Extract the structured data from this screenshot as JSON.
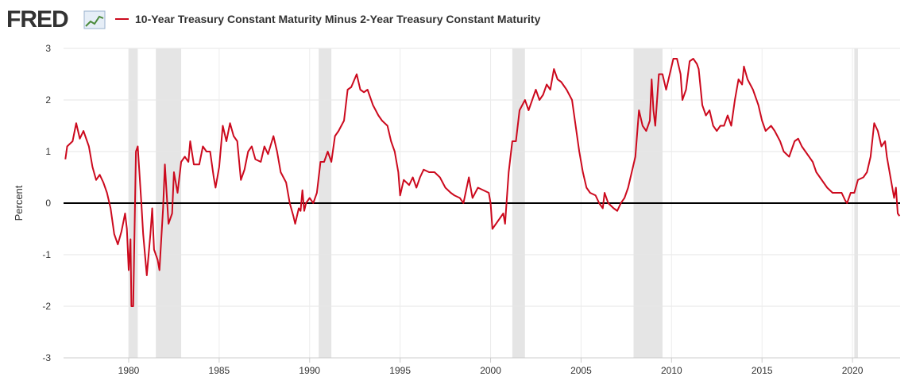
{
  "header": {
    "logo": "FRED"
  },
  "chart_data": {
    "type": "line",
    "y_label": "Percent",
    "xlim": [
      1976.4,
      2022.63
    ],
    "xticks": [
      1980,
      1985,
      1990,
      1995,
      2000,
      2005,
      2010,
      2015,
      2020
    ],
    "ylim": [
      -3,
      3
    ],
    "yticks": [
      -3,
      -2,
      -1,
      0,
      1,
      2,
      3
    ],
    "grid": true,
    "recessions": [
      [
        1980.0,
        1980.5
      ],
      [
        1981.5,
        1982.9
      ],
      [
        1990.5,
        1991.2
      ],
      [
        2001.2,
        2001.9
      ],
      [
        2007.9,
        2009.5
      ],
      [
        2020.1,
        2020.3
      ]
    ],
    "x": [
      1976.5,
      1976.6,
      1976.9,
      1977.1,
      1977.3,
      1977.5,
      1977.8,
      1978.0,
      1978.2,
      1978.4,
      1978.6,
      1978.8,
      1979.0,
      1979.2,
      1979.4,
      1979.6,
      1979.8,
      1979.9,
      1980.0,
      1980.1,
      1980.15,
      1980.25,
      1980.4,
      1980.5,
      1980.7,
      1980.8,
      1981.0,
      1981.2,
      1981.3,
      1981.4,
      1981.6,
      1981.7,
      1981.9,
      1982.0,
      1982.2,
      1982.4,
      1982.5,
      1982.7,
      1982.9,
      1983.1,
      1983.3,
      1983.4,
      1983.6,
      1983.9,
      1984.1,
      1984.3,
      1984.5,
      1984.7,
      1984.8,
      1985.0,
      1985.2,
      1985.4,
      1985.6,
      1985.8,
      1986.0,
      1986.2,
      1986.4,
      1986.6,
      1986.8,
      1987.0,
      1987.3,
      1987.5,
      1987.7,
      1988.0,
      1988.2,
      1988.4,
      1988.7,
      1988.9,
      1989.1,
      1989.2,
      1989.4,
      1989.5,
      1989.6,
      1989.7,
      1989.8,
      1990.0,
      1990.2,
      1990.4,
      1990.6,
      1990.8,
      1991.0,
      1991.2,
      1991.4,
      1991.6,
      1991.9,
      1992.1,
      1992.3,
      1992.6,
      1992.8,
      1993.0,
      1993.2,
      1993.5,
      1993.8,
      1994.0,
      1994.3,
      1994.5,
      1994.7,
      1994.9,
      1995.0,
      1995.2,
      1995.5,
      1995.7,
      1995.9,
      1996.1,
      1996.3,
      1996.6,
      1996.9,
      1997.2,
      1997.5,
      1997.8,
      1998.0,
      1998.3,
      1998.5,
      1998.8,
      1999.0,
      1999.3,
      1999.6,
      1999.9,
      2000.0,
      2000.1,
      2000.3,
      2000.5,
      2000.7,
      2000.8,
      2000.9,
      2001.0,
      2001.2,
      2001.4,
      2001.6,
      2001.9,
      2002.1,
      2002.3,
      2002.5,
      2002.7,
      2002.9,
      2003.1,
      2003.3,
      2003.5,
      2003.7,
      2003.9,
      2004.2,
      2004.5,
      2004.7,
      2004.9,
      2005.1,
      2005.3,
      2005.5,
      2005.8,
      2006.0,
      2006.2,
      2006.3,
      2006.5,
      2006.8,
      2007.0,
      2007.2,
      2007.4,
      2007.6,
      2007.8,
      2008.0,
      2008.2,
      2008.4,
      2008.6,
      2008.8,
      2008.9,
      2009.0,
      2009.1,
      2009.3,
      2009.5,
      2009.7,
      2009.9,
      2010.1,
      2010.3,
      2010.5,
      2010.6,
      2010.8,
      2011.0,
      2011.2,
      2011.4,
      2011.5,
      2011.7,
      2011.9,
      2012.1,
      2012.3,
      2012.5,
      2012.7,
      2012.9,
      2013.1,
      2013.3,
      2013.5,
      2013.7,
      2013.9,
      2014.0,
      2014.2,
      2014.5,
      2014.8,
      2015.0,
      2015.2,
      2015.5,
      2015.7,
      2016.0,
      2016.2,
      2016.5,
      2016.8,
      2017.0,
      2017.2,
      2017.5,
      2017.8,
      2018.0,
      2018.3,
      2018.6,
      2018.9,
      2019.1,
      2019.4,
      2019.6,
      2019.7,
      2019.9,
      2020.1,
      2020.3,
      2020.6,
      2020.8,
      2021.0,
      2021.2,
      2021.4,
      2021.6,
      2021.8,
      2021.9,
      2022.1,
      2022.3,
      2022.4,
      2022.5,
      2022.6
    ],
    "series": [
      {
        "name": "10-Year Treasury Constant Maturity Minus 2-Year Treasury Constant Maturity",
        "color": "#cc0a1e",
        "values": [
          0.85,
          1.1,
          1.2,
          1.55,
          1.25,
          1.4,
          1.1,
          0.7,
          0.45,
          0.55,
          0.4,
          0.2,
          -0.1,
          -0.6,
          -0.8,
          -0.55,
          -0.2,
          -0.5,
          -1.3,
          -0.7,
          -2.0,
          -2.0,
          1.0,
          1.1,
          0.0,
          -0.6,
          -1.4,
          -0.6,
          -0.1,
          -0.9,
          -1.1,
          -1.3,
          -0.1,
          0.75,
          -0.4,
          -0.2,
          0.6,
          0.2,
          0.8,
          0.9,
          0.8,
          1.2,
          0.75,
          0.75,
          1.1,
          1.0,
          1.0,
          0.5,
          0.3,
          0.7,
          1.5,
          1.2,
          1.55,
          1.3,
          1.2,
          0.45,
          0.65,
          1.0,
          1.1,
          0.85,
          0.8,
          1.1,
          0.95,
          1.3,
          1.0,
          0.6,
          0.4,
          0.0,
          -0.25,
          -0.4,
          -0.1,
          -0.15,
          0.25,
          -0.15,
          0.0,
          0.1,
          0.0,
          0.2,
          0.8,
          0.8,
          1.0,
          0.8,
          1.3,
          1.4,
          1.6,
          2.2,
          2.25,
          2.5,
          2.2,
          2.15,
          2.2,
          1.9,
          1.7,
          1.6,
          1.5,
          1.2,
          1.0,
          0.6,
          0.15,
          0.45,
          0.35,
          0.5,
          0.3,
          0.5,
          0.65,
          0.6,
          0.6,
          0.5,
          0.3,
          0.2,
          0.15,
          0.1,
          0.0,
          0.5,
          0.1,
          0.3,
          0.25,
          0.2,
          0.0,
          -0.5,
          -0.4,
          -0.3,
          -0.2,
          -0.4,
          0.1,
          0.6,
          1.2,
          1.2,
          1.8,
          2.0,
          1.8,
          2.0,
          2.2,
          2.0,
          2.1,
          2.3,
          2.2,
          2.6,
          2.4,
          2.35,
          2.2,
          2.0,
          1.5,
          1.0,
          0.6,
          0.3,
          0.2,
          0.15,
          0.0,
          -0.1,
          0.2,
          0.0,
          -0.1,
          -0.15,
          0.0,
          0.1,
          0.3,
          0.6,
          0.9,
          1.8,
          1.5,
          1.4,
          1.6,
          2.4,
          1.8,
          1.5,
          2.5,
          2.5,
          2.2,
          2.5,
          2.8,
          2.8,
          2.5,
          2.0,
          2.2,
          2.75,
          2.8,
          2.7,
          2.6,
          1.9,
          1.7,
          1.8,
          1.5,
          1.4,
          1.5,
          1.5,
          1.7,
          1.5,
          2.0,
          2.4,
          2.3,
          2.65,
          2.4,
          2.2,
          1.9,
          1.6,
          1.4,
          1.5,
          1.4,
          1.2,
          1.0,
          0.9,
          1.2,
          1.25,
          1.1,
          0.95,
          0.8,
          0.6,
          0.45,
          0.3,
          0.2,
          0.2,
          0.2,
          0.05,
          0.0,
          0.2,
          0.2,
          0.45,
          0.5,
          0.6,
          0.9,
          1.55,
          1.4,
          1.1,
          1.2,
          0.9,
          0.5,
          0.1,
          0.3,
          -0.2,
          -0.25
        ]
      }
    ]
  }
}
